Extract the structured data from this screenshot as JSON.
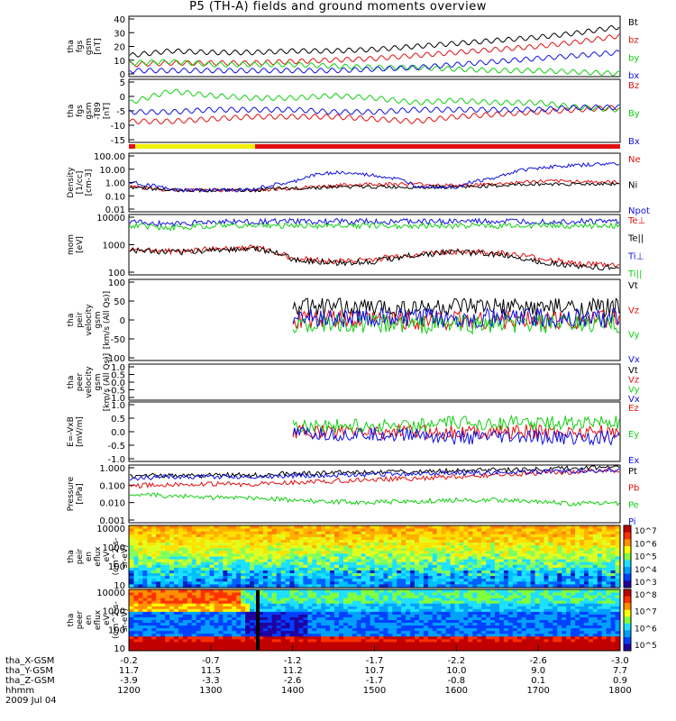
{
  "title": "P5 (TH-A) fields and ground moments overview",
  "colors": {
    "black": "#000000",
    "red": "#e01010",
    "green": "#10d010",
    "blue": "#1010e0",
    "yellow": "#f0f000"
  },
  "chart_data": [
    {
      "type": "line",
      "ylabel": [
        "tha",
        "fgs",
        "gsm",
        "[nT]"
      ],
      "yticks": [
        "40",
        "30",
        "20",
        "10",
        "0"
      ],
      "ylim": [
        0,
        40
      ],
      "series": [
        {
          "name": "Bt",
          "color": "black",
          "values": [
            14,
            17,
            16,
            16,
            17,
            17,
            18,
            20,
            22,
            24,
            26,
            29,
            33
          ]
        },
        {
          "name": "bz",
          "color": "red",
          "values": [
            8,
            9,
            9,
            9,
            10,
            11,
            12,
            14,
            16,
            18,
            20,
            23,
            27
          ]
        },
        {
          "name": "by",
          "color": "green",
          "values": [
            9,
            10,
            8,
            8,
            8,
            7,
            6,
            6,
            5,
            4,
            4,
            3,
            2
          ]
        },
        {
          "name": "bx",
          "color": "blue",
          "values": [
            4,
            4,
            4,
            4,
            4,
            4,
            5,
            6,
            8,
            10,
            12,
            14,
            16
          ]
        }
      ]
    },
    {
      "type": "line",
      "ylabel": [
        "tha",
        "fgs",
        "gsm",
        "-T89",
        "[nT]"
      ],
      "yticks": [
        "5",
        "0",
        "-5",
        "-10",
        "-15"
      ],
      "ylim": [
        -17,
        10
      ],
      "series": [
        {
          "name": "Bz",
          "color": "red",
          "values": [
            -8,
            -8,
            -7,
            -6,
            -6,
            -6,
            -7,
            -8,
            -6,
            -5,
            -4,
            -3,
            -2
          ]
        },
        {
          "name": "By",
          "color": "green",
          "values": [
            0,
            5,
            3,
            2,
            2,
            3,
            2,
            0,
            1,
            0,
            0,
            -2,
            -3
          ]
        },
        {
          "name": "Bx",
          "color": "blue",
          "values": [
            -4,
            -4,
            -3,
            -3,
            -3,
            -4,
            -4,
            -3,
            -3,
            -3,
            -3,
            -2,
            -2
          ]
        }
      ]
    },
    {
      "type": "line",
      "ylabel": [
        "Density",
        "[1/cc]",
        "[cm-3]"
      ],
      "yticks": [
        "100.00",
        "10.00",
        "1.00",
        "0.10",
        "0.01"
      ],
      "ylim": [
        0.01,
        100
      ],
      "log": true,
      "series": [
        {
          "name": "Ne",
          "color": "red",
          "values": [
            0.5,
            0.3,
            0.3,
            0.3,
            0.4,
            0.6,
            0.8,
            0.8,
            0.6,
            0.8,
            1.2,
            1.2,
            1.0
          ]
        },
        {
          "name": "Ni",
          "color": "black",
          "values": [
            0.5,
            0.3,
            0.3,
            0.3,
            0.4,
            0.5,
            0.5,
            0.5,
            0.5,
            0.6,
            0.8,
            0.8,
            0.8
          ]
        },
        {
          "name": "Npot",
          "color": "blue",
          "values": [
            1.0,
            0.3,
            0.3,
            0.3,
            1.0,
            5,
            3,
            0.6,
            0.5,
            2,
            10,
            15,
            20
          ]
        }
      ]
    },
    {
      "type": "line",
      "ylabel": [
        "mom",
        "[eV]"
      ],
      "yticks": [
        "10000",
        "1000",
        "100"
      ],
      "ylim": [
        40,
        15000
      ],
      "log": true,
      "series": [
        {
          "name": "Te⊥",
          "color": "red",
          "values": [
            500,
            400,
            500,
            600,
            200,
            150,
            180,
            300,
            400,
            350,
            200,
            120,
            100
          ]
        },
        {
          "name": "Te||",
          "color": "black",
          "values": [
            450,
            350,
            450,
            550,
            180,
            130,
            150,
            280,
            380,
            300,
            150,
            90,
            80
          ]
        },
        {
          "name": "Ti⊥",
          "color": "blue",
          "values": [
            7000,
            6000,
            7000,
            7500,
            7500,
            7500,
            7500,
            7500,
            7500,
            7500,
            7500,
            7500,
            7500
          ]
        },
        {
          "name": "Ti||",
          "color": "green",
          "values": [
            5000,
            4000,
            5000,
            5000,
            5000,
            5000,
            5000,
            5000,
            5000,
            5000,
            5000,
            5000,
            5000
          ]
        }
      ]
    },
    {
      "type": "line",
      "ylabel": [
        "tha",
        "peir",
        "velocity",
        "gsm",
        "[km/s (All Qs)]"
      ],
      "yticks": [
        "100",
        "50",
        "0",
        "-50",
        "-100"
      ],
      "ylim": [
        -100,
        100
      ],
      "series": [
        {
          "name": "Vt",
          "color": "black",
          "values": [
            30,
            null,
            null,
            null,
            30,
            30,
            30,
            30,
            30,
            30,
            30,
            30,
            30
          ]
        },
        {
          "name": "Vz",
          "color": "red",
          "values": [
            0,
            null,
            null,
            null,
            0,
            0,
            0,
            0,
            0,
            0,
            0,
            0,
            0
          ]
        },
        {
          "name": "Vy",
          "color": "green",
          "values": [
            -10,
            null,
            null,
            null,
            -10,
            -10,
            -10,
            -10,
            -10,
            -10,
            -10,
            -10,
            -10
          ]
        },
        {
          "name": "Vx",
          "color": "blue",
          "values": [
            5,
            null,
            null,
            null,
            5,
            5,
            5,
            5,
            5,
            5,
            5,
            5,
            5
          ]
        }
      ]
    },
    {
      "type": "line",
      "ylabel": [
        "tha",
        "peer",
        "velocity",
        "gsm",
        "[km/s (All Qs)]"
      ],
      "yticks": [
        "1.0",
        "0.5",
        "0.0",
        "-0.5",
        "-1.0"
      ],
      "ylim": [
        -1,
        1
      ],
      "series": [
        {
          "name": "Vt",
          "color": "black",
          "values": []
        },
        {
          "name": "Vz",
          "color": "red",
          "values": []
        },
        {
          "name": "Vy",
          "color": "green",
          "values": []
        },
        {
          "name": "Vx",
          "color": "blue",
          "values": []
        }
      ]
    },
    {
      "type": "line",
      "ylabel": [
        "E=-VxB",
        "[mV/m]"
      ],
      "yticks": [
        "1.0",
        "0.5",
        "0.0",
        "-0.5",
        "-1.0"
      ],
      "ylim": [
        -1,
        1
      ],
      "series": [
        {
          "name": "Ez",
          "color": "red",
          "values": [
            0.2,
            null,
            null,
            null,
            0.0,
            0.0,
            0.0,
            0.0,
            0.0,
            0.0,
            0.0,
            0.0,
            0.0
          ]
        },
        {
          "name": "Ey",
          "color": "green",
          "values": [
            0.2,
            null,
            null,
            null,
            0.2,
            0.2,
            0.2,
            0.2,
            0.3,
            0.3,
            0.3,
            0.3,
            0.3
          ]
        },
        {
          "name": "Ex",
          "color": "blue",
          "values": [
            -0.1,
            null,
            null,
            null,
            -0.1,
            -0.1,
            -0.1,
            -0.1,
            -0.2,
            -0.2,
            -0.2,
            -0.2,
            -0.2
          ]
        }
      ]
    },
    {
      "type": "line",
      "ylabel": [
        "Pressure",
        "[nPa]"
      ],
      "yticks": [
        "1.000",
        "0.100",
        "0.010",
        "0.001"
      ],
      "ylim": [
        0.001,
        1
      ],
      "log": true,
      "series": [
        {
          "name": "Pt",
          "color": "black",
          "values": [
            0.25,
            0.3,
            0.3,
            0.3,
            0.35,
            0.4,
            0.4,
            0.45,
            0.5,
            0.55,
            0.6,
            0.7,
            0.85
          ]
        },
        {
          "name": "Pb",
          "color": "red",
          "values": [
            0.08,
            0.1,
            0.1,
            0.1,
            0.12,
            0.15,
            0.18,
            0.2,
            0.25,
            0.3,
            0.38,
            0.45,
            0.55
          ]
        },
        {
          "name": "Pe",
          "color": "green",
          "values": [
            0.03,
            0.025,
            0.02,
            0.02,
            0.015,
            0.012,
            0.012,
            0.013,
            0.015,
            0.015,
            0.012,
            0.01,
            0.01
          ]
        },
        {
          "name": "Pi",
          "color": "blue",
          "values": [
            0.2,
            0.25,
            0.25,
            0.25,
            0.28,
            0.3,
            0.32,
            0.35,
            0.38,
            0.42,
            0.45,
            0.5,
            0.6
          ]
        }
      ]
    },
    {
      "type": "heatmap",
      "ylabel": [
        "tha",
        "peir",
        "en",
        "eflux",
        "eV",
        "(cm^2-s-",
        "sr-eV)"
      ],
      "yticks": [
        "10000",
        "1000",
        "100",
        "10"
      ],
      "colorbar_ticks": [
        "10^7",
        "10^6",
        "10^5",
        "10^4",
        "10^3"
      ]
    },
    {
      "type": "heatmap",
      "ylabel": [
        "tha",
        "peer",
        "en",
        "eflux",
        "eV",
        "(cm^2-s-",
        "sr-eV)"
      ],
      "yticks": [
        "10000",
        "1000",
        "100",
        "10"
      ],
      "colorbar_ticks": [
        "10^8",
        "10^7",
        "10^6",
        "10^5"
      ]
    }
  ],
  "xaxis": {
    "rows": [
      {
        "label": "tha_X-GSM",
        "values": [
          "-0.2",
          "-0.7",
          "-1.2",
          "-1.7",
          "-2.2",
          "-2.6",
          "-3.0"
        ]
      },
      {
        "label": "tha_Y-GSM",
        "values": [
          "11.7",
          "11.5",
          "11.2",
          "10.7",
          "10.0",
          "9.0",
          "7.7"
        ]
      },
      {
        "label": "tha_Z-GSM",
        "values": [
          "-3.9",
          "-3.3",
          "-2.6",
          "-1.7",
          "-0.8",
          "0.1",
          "0.9"
        ]
      },
      {
        "label": "hhmm",
        "values": [
          "1200",
          "1300",
          "1400",
          "1500",
          "1600",
          "1700",
          "1800"
        ]
      }
    ],
    "date": "2009 Jul 04"
  }
}
